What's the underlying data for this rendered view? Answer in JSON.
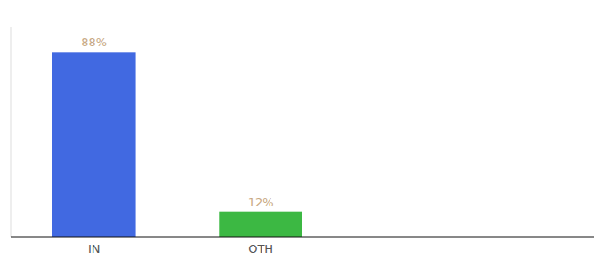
{
  "chart_data": {
    "type": "bar",
    "categories": [
      "IN",
      "OTH"
    ],
    "values": [
      88,
      12
    ],
    "value_labels": [
      "88%",
      "12%"
    ],
    "colors": [
      "#4169E1",
      "#3CB843"
    ],
    "ylim": [
      0,
      100
    ],
    "data_labels": true,
    "tick_labels": "x",
    "grid": false
  }
}
